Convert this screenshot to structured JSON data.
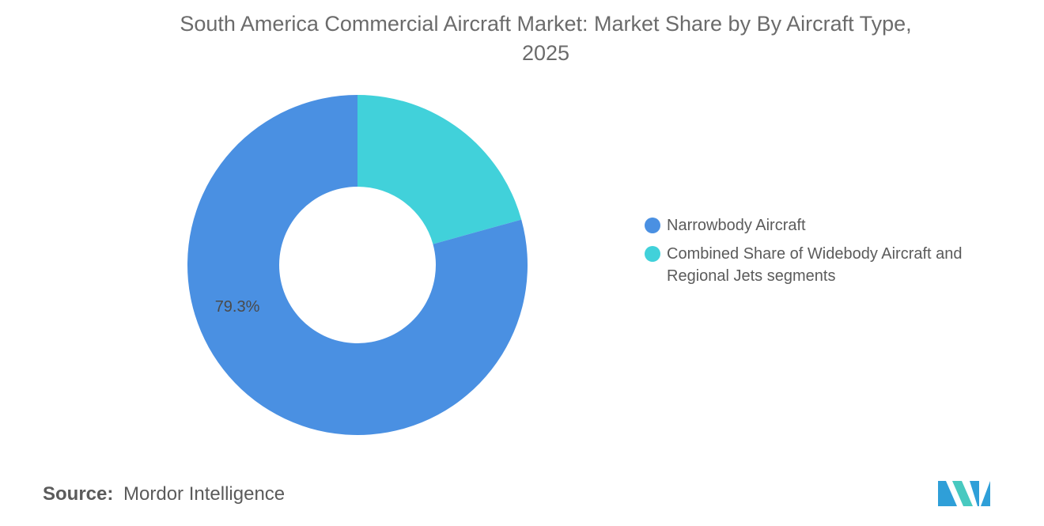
{
  "chart_data": {
    "type": "pie",
    "variant": "donut",
    "title_line1": "South America Commercial Aircraft Market: Market Share by By Aircraft Type,",
    "title_line2": "2025",
    "categories": [
      "Narrowbody Aircraft",
      "Combined Share of Widebody Aircraft and Regional Jets segments"
    ],
    "legend_line2": "Regional Jets segments",
    "legend_line1": "Combined Share of Widebody Aircraft and",
    "values": [
      79.3,
      20.7
    ],
    "data_labels": [
      "79.3%",
      ""
    ],
    "colors": [
      "#4a90e2",
      "#41d1da"
    ],
    "legend_position": "right"
  },
  "source": {
    "label": "Source:",
    "text": "Mordor Intelligence"
  },
  "logo_colors": [
    "#2f9fd8",
    "#48c9c0"
  ]
}
